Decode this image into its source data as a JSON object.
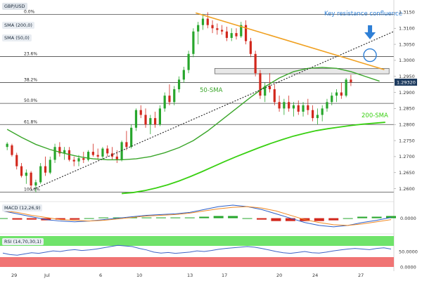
{
  "symbol": "GBP/USD",
  "legend": {
    "sma200": "SMA (200,0)",
    "sma50": "SMA (50,0)",
    "macd": "MACD (12,26,9)",
    "rsi": "RSI (14,70,30,1)"
  },
  "annotations": {
    "key_resistance": "Key resistance confluence",
    "sma50": "50-SMA",
    "sma200": "200-SMA"
  },
  "colors": {
    "bull": "#27a62c",
    "bear": "#d2281d",
    "sma50": "#3aa62a",
    "sma200": "#39d012",
    "resistance": "#f0a020",
    "support": "#222222",
    "annotation": "#2e7fd6",
    "price_badge": "#1c3a5e",
    "macd_line": "#2c5fc9",
    "macd_signal": "#f08a24",
    "rsi_line": "#3e63c7",
    "rsi_overbought": "#6fe36a",
    "rsi_oversold": "#f07474"
  },
  "chart_data": [
    {
      "type": "candlestick",
      "title": "GBP/USD",
      "y_ticks": [
        "1.2600",
        "1.2650",
        "1.2700",
        "1.2750",
        "1.2800",
        "1.2850",
        "1.2900",
        "1.2950",
        "1.3000",
        "1.3050",
        "1.3100",
        "1.3150"
      ],
      "ylim": [
        1.2575,
        1.3175
      ],
      "x_ticks": [
        "29",
        "Jul",
        "6",
        "10",
        "13",
        "17",
        "20",
        "24",
        "27"
      ],
      "current_price": "1.29320",
      "fibonacci": [
        {
          "label": "0.0%",
          "value": 1.3143
        },
        {
          "label": "23.6%",
          "value": 1.3012
        },
        {
          "label": "38.2%",
          "value": 1.2931
        },
        {
          "label": "50.0%",
          "value": 1.2866
        },
        {
          "label": "61.8%",
          "value": 1.28
        },
        {
          "label": "100.0%",
          "value": 1.2589
        }
      ],
      "candles": [
        [
          1.273,
          1.2745,
          1.272,
          1.274
        ],
        [
          1.2735,
          1.274,
          1.27,
          1.2705
        ],
        [
          1.2705,
          1.2712,
          1.266,
          1.267
        ],
        [
          1.267,
          1.268,
          1.2635,
          1.264
        ],
        [
          1.264,
          1.266,
          1.2615,
          1.265
        ],
        [
          1.265,
          1.2655,
          1.26,
          1.261
        ],
        [
          1.261,
          1.2628,
          1.2589,
          1.262
        ],
        [
          1.262,
          1.268,
          1.2615,
          1.267
        ],
        [
          1.267,
          1.27,
          1.264,
          1.265
        ],
        [
          1.265,
          1.27,
          1.2645,
          1.269
        ],
        [
          1.269,
          1.274,
          1.268,
          1.273
        ],
        [
          1.273,
          1.2745,
          1.27,
          1.271
        ],
        [
          1.271,
          1.273,
          1.269,
          1.272
        ],
        [
          1.272,
          1.273,
          1.2685,
          1.269
        ],
        [
          1.269,
          1.27,
          1.267,
          1.2685
        ],
        [
          1.2685,
          1.2705,
          1.267,
          1.2695
        ],
        [
          1.2695,
          1.2715,
          1.268,
          1.269
        ],
        [
          1.269,
          1.272,
          1.2685,
          1.2715
        ],
        [
          1.2715,
          1.274,
          1.27,
          1.2705
        ],
        [
          1.2705,
          1.2725,
          1.269,
          1.27
        ],
        [
          1.27,
          1.273,
          1.269,
          1.2725
        ],
        [
          1.2725,
          1.2735,
          1.27,
          1.271
        ],
        [
          1.271,
          1.273,
          1.269,
          1.27
        ],
        [
          1.27,
          1.272,
          1.268,
          1.269
        ],
        [
          1.269,
          1.275,
          1.2685,
          1.2745
        ],
        [
          1.2745,
          1.278,
          1.272,
          1.273
        ],
        [
          1.273,
          1.28,
          1.2725,
          1.279
        ],
        [
          1.279,
          1.285,
          1.278,
          1.2845
        ],
        [
          1.2845,
          1.286,
          1.282,
          1.283
        ],
        [
          1.283,
          1.285,
          1.279,
          1.28
        ],
        [
          1.28,
          1.283,
          1.277,
          1.282
        ],
        [
          1.282,
          1.284,
          1.279,
          1.28
        ],
        [
          1.28,
          1.286,
          1.2795,
          1.285
        ],
        [
          1.285,
          1.29,
          1.284,
          1.289
        ],
        [
          1.289,
          1.2925,
          1.286,
          1.287
        ],
        [
          1.287,
          1.292,
          1.286,
          1.291
        ],
        [
          1.291,
          1.295,
          1.29,
          1.294
        ],
        [
          1.294,
          1.298,
          1.293,
          1.297
        ],
        [
          1.297,
          1.303,
          1.296,
          1.302
        ],
        [
          1.302,
          1.31,
          1.301,
          1.309
        ],
        [
          1.309,
          1.312,
          1.305,
          1.311
        ],
        [
          1.311,
          1.3145,
          1.3095,
          1.313
        ],
        [
          1.313,
          1.315,
          1.31,
          1.311
        ],
        [
          1.311,
          1.3125,
          1.3085,
          1.31
        ],
        [
          1.31,
          1.3115,
          1.308,
          1.3095
        ],
        [
          1.3095,
          1.311,
          1.308,
          1.309
        ],
        [
          1.309,
          1.3105,
          1.306,
          1.307
        ],
        [
          1.307,
          1.31,
          1.306,
          1.3085
        ],
        [
          1.3085,
          1.31,
          1.3065,
          1.3075
        ],
        [
          1.3075,
          1.312,
          1.307,
          1.311
        ],
        [
          1.311,
          1.3125,
          1.305,
          1.306
        ],
        [
          1.306,
          1.307,
          1.301,
          1.302
        ],
        [
          1.302,
          1.303,
          1.295,
          1.296
        ],
        [
          1.296,
          1.297,
          1.288,
          1.289
        ],
        [
          1.289,
          1.293,
          1.287,
          1.292
        ],
        [
          1.292,
          1.296,
          1.29,
          1.291
        ],
        [
          1.291,
          1.2925,
          1.286,
          1.287
        ],
        [
          1.287,
          1.289,
          1.284,
          1.285
        ],
        [
          1.285,
          1.288,
          1.283,
          1.287
        ],
        [
          1.287,
          1.289,
          1.284,
          1.285
        ],
        [
          1.285,
          1.287,
          1.2825,
          1.286
        ],
        [
          1.286,
          1.2875,
          1.283,
          1.284
        ],
        [
          1.284,
          1.287,
          1.2825,
          1.286
        ],
        [
          1.286,
          1.288,
          1.283,
          1.2845
        ],
        [
          1.2845,
          1.286,
          1.281,
          1.282
        ],
        [
          1.282,
          1.285,
          1.28,
          1.283
        ],
        [
          1.283,
          1.286,
          1.281,
          1.285
        ],
        [
          1.285,
          1.288,
          1.284,
          1.287
        ],
        [
          1.287,
          1.29,
          1.286,
          1.289
        ],
        [
          1.289,
          1.291,
          1.287,
          1.29
        ],
        [
          1.29,
          1.293,
          1.288,
          1.289
        ],
        [
          1.289,
          1.2945,
          1.2885,
          1.294
        ],
        [
          1.294,
          1.2955,
          1.292,
          1.2932
        ]
      ],
      "sma50": [
        1.2785,
        1.276,
        1.2738,
        1.2722,
        1.271,
        1.27,
        1.2693,
        1.269,
        1.269,
        1.2693,
        1.27,
        1.2712,
        1.2728,
        1.275,
        1.278,
        1.2815,
        1.285,
        1.2885,
        1.2918,
        1.2945,
        1.2965,
        1.2975,
        1.2978,
        1.2975,
        1.2965,
        1.295,
        1.2935
      ],
      "sma200": [
        1.2585,
        1.2588,
        1.2594,
        1.2602,
        1.2612,
        1.2624,
        1.2638,
        1.2653,
        1.2669,
        1.2685,
        1.27,
        1.2714,
        1.2728,
        1.2741,
        1.2753,
        1.2764,
        1.2773,
        1.2781,
        1.2787,
        1.2792,
        1.2797,
        1.2801,
        1.2804,
        1.2807
      ],
      "resistance_line": [
        {
          "x": 41.5,
          "y": 1.3148
        },
        {
          "x": 75,
          "y": 1.2998
        }
      ],
      "support_line": [
        {
          "x": 7,
          "y": 1.2595
        },
        {
          "x": 75,
          "y": 1.3038
        }
      ],
      "resistance_zone": [
        1.2958,
        1.2975
      ]
    },
    {
      "type": "histogram",
      "title": "MACD (12,26,9)",
      "y_ticks": [
        "0.0000"
      ],
      "macd": [
        0.001,
        0.0006,
        0.0002,
        -0.0002,
        -0.0004,
        -0.0005,
        -0.0004,
        -0.0002,
        0.0,
        0.0002,
        0.0004,
        0.0005,
        0.0006,
        0.0008,
        0.0012,
        0.0016,
        0.0018,
        0.0016,
        0.0012,
        0.0006,
        0.0,
        -0.0006,
        -0.001,
        -0.0012,
        -0.001,
        -0.0006,
        -0.0003,
        0.0001
      ],
      "signal": [
        0.001,
        0.0008,
        0.0004,
        0.0001,
        -0.0002,
        -0.0003,
        -0.0004,
        -0.0003,
        -0.0001,
        0.0001,
        0.0003,
        0.0004,
        0.0005,
        0.0007,
        0.001,
        0.0013,
        0.0015,
        0.0016,
        0.0014,
        0.001,
        0.0004,
        -0.0002,
        -0.0006,
        -0.0009,
        -0.001,
        -0.0008,
        -0.0005,
        -0.0002
      ],
      "histogram": [
        0.0,
        -0.0002,
        -0.0002,
        -0.0003,
        -0.0002,
        -0.0002,
        0.0,
        0.0001,
        0.0001,
        0.0001,
        0.0001,
        0.0001,
        0.0001,
        0.0001,
        0.0002,
        0.0003,
        0.0003,
        0.0,
        -0.0002,
        -0.0004,
        -0.0004,
        -0.0004,
        -0.0004,
        -0.0003,
        0.0,
        0.0002,
        0.0002,
        0.0003
      ]
    },
    {
      "type": "line",
      "title": "RSI (14,70,30,1)",
      "y_ticks": [
        "50.0000",
        "0.0000"
      ],
      "overbought": 70,
      "oversold": 30,
      "rsi": [
        45,
        40,
        38,
        42,
        46,
        44,
        48,
        52,
        50,
        54,
        56,
        53,
        55,
        58,
        62,
        66,
        70,
        68,
        66,
        60,
        55,
        48,
        45,
        47,
        44,
        46,
        48,
        52,
        50,
        53,
        57,
        60,
        62,
        64,
        66,
        64,
        60,
        55,
        50,
        46,
        44,
        47,
        50,
        46,
        45,
        48,
        52,
        55,
        58,
        60,
        58,
        56,
        60,
        62,
        58
      ]
    }
  ]
}
